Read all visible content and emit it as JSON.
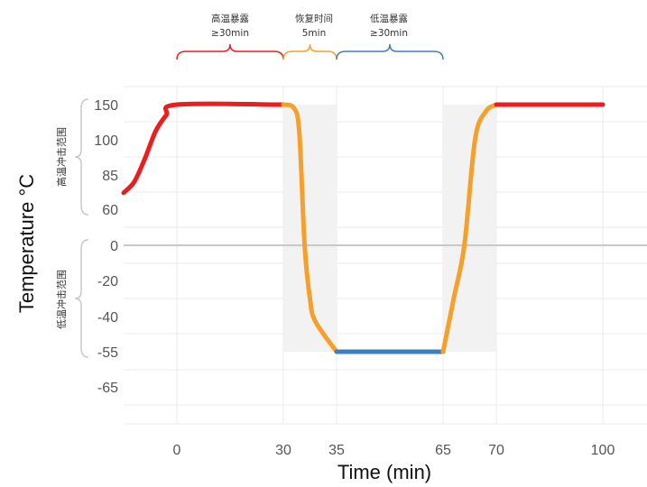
{
  "chart_data": {
    "type": "line",
    "xlabel": "Time  (min)",
    "ylabel": "Temperature  °C",
    "x_ticks": [
      "0",
      "30",
      "35",
      "65",
      "70",
      "100"
    ],
    "y_ticks": [
      "150",
      "100",
      "85",
      "60",
      "0",
      "-20",
      "-40",
      "-55",
      "-65"
    ],
    "phases": [
      {
        "label": "高温暴露",
        "sublabel": "≥30min",
        "x_start": 0,
        "x_end": 30,
        "color": "#ee1c1c"
      },
      {
        "label": "恢复时间",
        "sublabel": "5min",
        "x_start": 30,
        "x_end": 35,
        "color": "#f5a02a"
      },
      {
        "label": "低温暴露",
        "sublabel": "≥30min",
        "x_start": 35,
        "x_end": 65,
        "color": "#3d7ec2"
      }
    ],
    "range_labels": {
      "high": "高温冲击范围",
      "low": "低温冲击范围"
    },
    "shaded_x_ranges": [
      [
        30,
        35
      ],
      [
        65,
        70
      ]
    ],
    "series": [
      {
        "color": "#ee1c1c",
        "points": [
          [
            -10,
            72
          ],
          [
            -8,
            80
          ],
          [
            -6,
            92
          ],
          [
            -4,
            112
          ],
          [
            -2,
            135
          ],
          [
            0,
            150
          ],
          [
            30,
            150
          ]
        ]
      },
      {
        "color": "#f5a02a",
        "points": [
          [
            30,
            150
          ],
          [
            31,
            145
          ],
          [
            31.5,
            110
          ],
          [
            32,
            0
          ],
          [
            32.5,
            -30
          ],
          [
            33,
            -42
          ],
          [
            35,
            -55
          ]
        ]
      },
      {
        "color": "#3d7ec2",
        "points": [
          [
            35,
            -55
          ],
          [
            65,
            -55
          ]
        ]
      },
      {
        "color": "#f5a02a",
        "points": [
          [
            65,
            -55
          ],
          [
            66,
            -30
          ],
          [
            67,
            0
          ],
          [
            68,
            100
          ],
          [
            69,
            140
          ],
          [
            70,
            150
          ]
        ]
      },
      {
        "color": "#ee1c1c",
        "points": [
          [
            70,
            150
          ],
          [
            100,
            150
          ]
        ]
      }
    ],
    "zero_line": 0,
    "grid": true,
    "colors": {
      "high": "#ee1c1c",
      "recovery": "#f5a02a",
      "low": "#3d7ec2",
      "grid": "#ebebeb",
      "shade": "#f2f2f2",
      "zero": "#c8c8c8",
      "brace": "#c8c8c8"
    }
  }
}
